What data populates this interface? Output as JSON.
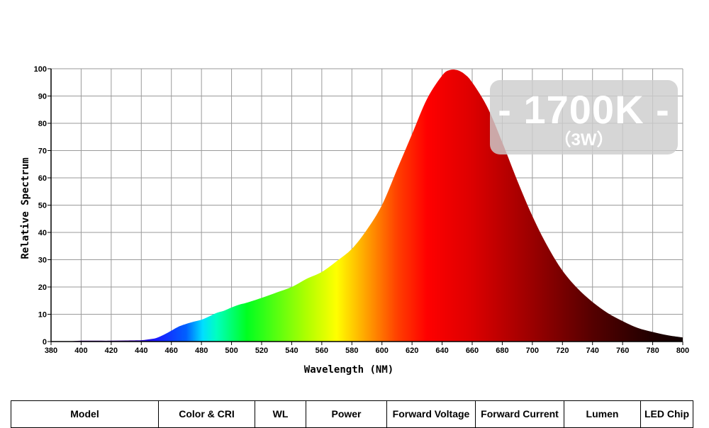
{
  "chart_data": {
    "type": "area",
    "xlabel": "Wavelength (NM)",
    "ylabel": "Relative Spectrum",
    "xlim": [
      380,
      800
    ],
    "ylim": [
      0,
      100
    ],
    "x_ticks": [
      380,
      400,
      420,
      440,
      460,
      480,
      500,
      520,
      540,
      560,
      580,
      600,
      620,
      640,
      660,
      680,
      700,
      720,
      740,
      760,
      780,
      800
    ],
    "y_ticks": [
      0,
      10,
      20,
      30,
      40,
      50,
      60,
      70,
      80,
      90,
      100
    ],
    "grid": true,
    "x": [
      380,
      390,
      400,
      410,
      420,
      430,
      440,
      445,
      450,
      455,
      460,
      465,
      470,
      475,
      480,
      485,
      490,
      495,
      500,
      505,
      510,
      520,
      530,
      540,
      550,
      560,
      570,
      580,
      590,
      600,
      610,
      620,
      630,
      640,
      645,
      650,
      655,
      660,
      670,
      680,
      690,
      700,
      710,
      720,
      730,
      740,
      750,
      760,
      770,
      780,
      790,
      800
    ],
    "y": [
      0,
      0,
      0.3,
      0.3,
      0.3,
      0.4,
      0.5,
      0.8,
      1.3,
      2.5,
      4,
      5.5,
      6.5,
      7.3,
      8,
      9.2,
      10.5,
      11.3,
      12.5,
      13.5,
      14.2,
      16,
      18,
      20,
      23,
      25.5,
      29.5,
      34,
      41,
      50,
      63,
      76,
      89,
      97.5,
      99.5,
      99.5,
      98,
      95,
      86,
      73,
      59,
      46,
      35,
      26,
      19.5,
      14.5,
      10.5,
      7.5,
      5,
      3.5,
      2.3,
      1.5
    ],
    "badge": {
      "title": "- 1700K -",
      "subtitle": "（3W）"
    }
  },
  "table": {
    "headers": [
      "Model",
      "Color & CRI",
      "WL",
      "Power",
      "Forward Voltage",
      "Forward Current",
      "Lumen",
      "LED Chip"
    ]
  }
}
